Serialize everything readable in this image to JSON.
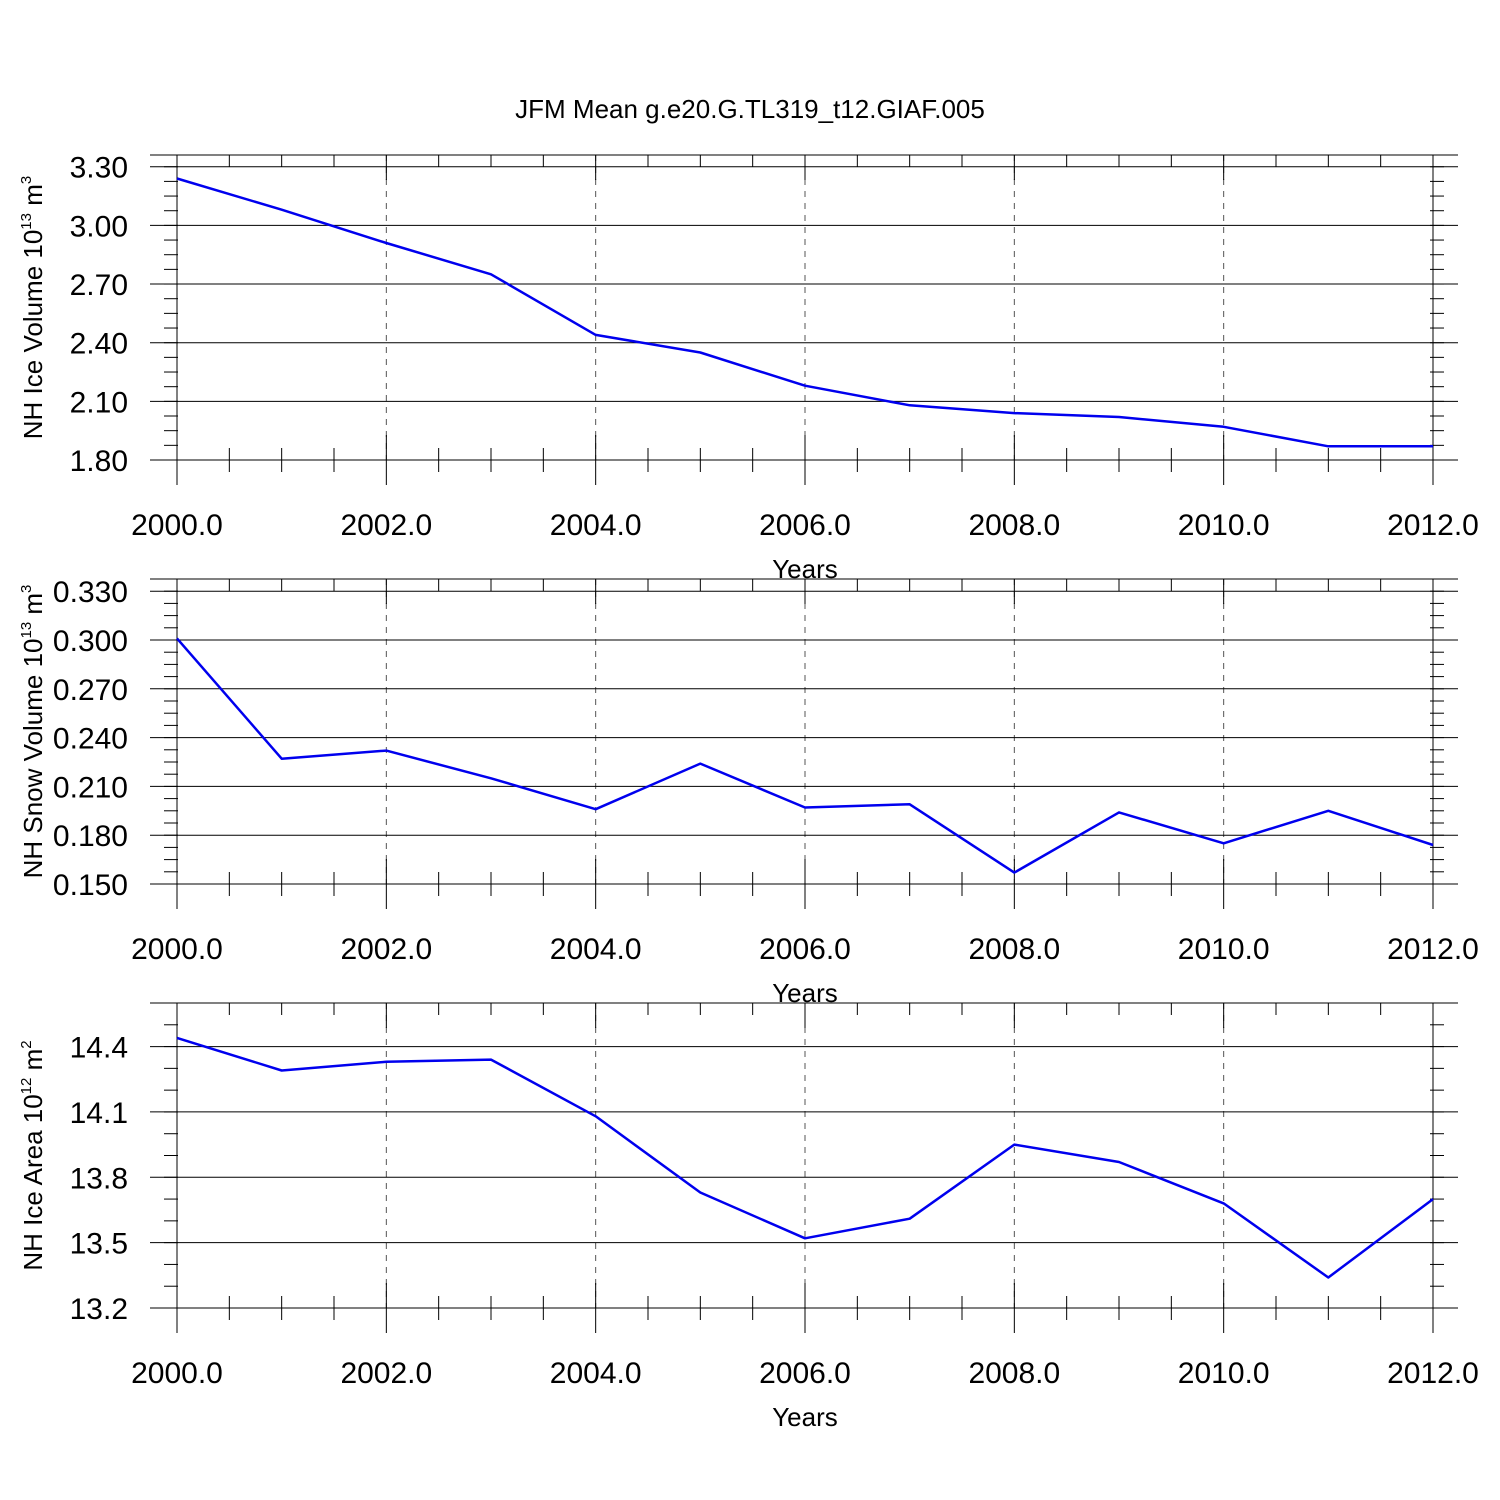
{
  "title": "JFM Mean g.e20.G.TL319_t12.GIAF.005",
  "chart_data": [
    {
      "type": "line",
      "ylabel": {
        "text": "NH Ice Volume 10",
        "exp": "13",
        "unit": " m",
        "unit_exp": "3"
      },
      "xlabel": "Years",
      "xlim": [
        2000,
        2012
      ],
      "ylim": [
        1.8,
        3.3
      ],
      "y_range_top": 3.36,
      "x_ticks": [
        2000,
        2002,
        2004,
        2006,
        2008,
        2010,
        2012
      ],
      "x_tick_labels": [
        "2000.0",
        "2002.0",
        "2004.0",
        "2006.0",
        "2008.0",
        "2010.0",
        "2012.0"
      ],
      "y_ticks": [
        1.8,
        2.1,
        2.4,
        2.7,
        3.0,
        3.3
      ],
      "y_tick_labels": [
        "1.80",
        "2.10",
        "2.40",
        "2.70",
        "3.00",
        "3.30"
      ],
      "y_minor_step": 0.075,
      "grid": "x-dashed",
      "color": "#0000ee",
      "x": [
        2000,
        2001,
        2002,
        2003,
        2004,
        2005,
        2006,
        2007,
        2008,
        2009,
        2010,
        2011,
        2012
      ],
      "values": [
        3.24,
        3.08,
        2.91,
        2.75,
        2.44,
        2.35,
        2.18,
        2.08,
        2.04,
        2.02,
        1.97,
        1.87,
        1.87
      ]
    },
    {
      "type": "line",
      "ylabel": {
        "text": "NH Snow Volume 10",
        "exp": "13",
        "unit": " m",
        "unit_exp": "3"
      },
      "xlabel": "Years",
      "xlim": [
        2000,
        2012
      ],
      "ylim": [
        0.15,
        0.33
      ],
      "y_range_top": 0.3375,
      "x_ticks": [
        2000,
        2002,
        2004,
        2006,
        2008,
        2010,
        2012
      ],
      "x_tick_labels": [
        "2000.0",
        "2002.0",
        "2004.0",
        "2006.0",
        "2008.0",
        "2010.0",
        "2012.0"
      ],
      "y_ticks": [
        0.15,
        0.18,
        0.21,
        0.24,
        0.27,
        0.3,
        0.33
      ],
      "y_tick_labels": [
        "0.150",
        "0.180",
        "0.210",
        "0.240",
        "0.270",
        "0.300",
        "0.330"
      ],
      "y_minor_step": 0.0075,
      "grid": "x-dashed",
      "color": "#0000ee",
      "x": [
        2000,
        2001,
        2002,
        2003,
        2004,
        2005,
        2006,
        2007,
        2008,
        2009,
        2010,
        2011,
        2012
      ],
      "values": [
        0.301,
        0.227,
        0.232,
        0.215,
        0.196,
        0.224,
        0.197,
        0.199,
        0.157,
        0.194,
        0.175,
        0.195,
        0.174
      ]
    },
    {
      "type": "line",
      "ylabel": {
        "text": "NH Ice Area 10",
        "exp": "12",
        "unit": " m",
        "unit_exp": "2"
      },
      "xlabel": "Years",
      "xlim": [
        2000,
        2012
      ],
      "ylim": [
        13.2,
        14.6
      ],
      "y_range_top": 14.6,
      "x_ticks": [
        2000,
        2002,
        2004,
        2006,
        2008,
        2010,
        2012
      ],
      "x_tick_labels": [
        "2000.0",
        "2002.0",
        "2004.0",
        "2006.0",
        "2008.0",
        "2010.0",
        "2012.0"
      ],
      "y_ticks": [
        13.2,
        13.5,
        13.8,
        14.1,
        14.4
      ],
      "y_tick_labels": [
        "13.2",
        "13.5",
        "13.8",
        "14.1",
        "14.4"
      ],
      "y_minor_step": 0.1,
      "grid": "x-dashed",
      "color": "#0000ee",
      "x": [
        2000,
        2001,
        2002,
        2003,
        2004,
        2005,
        2006,
        2007,
        2008,
        2009,
        2010,
        2011,
        2012
      ],
      "values": [
        14.44,
        14.29,
        14.33,
        14.34,
        14.08,
        13.73,
        13.52,
        13.61,
        13.95,
        13.87,
        13.68,
        13.34,
        13.7
      ]
    }
  ]
}
